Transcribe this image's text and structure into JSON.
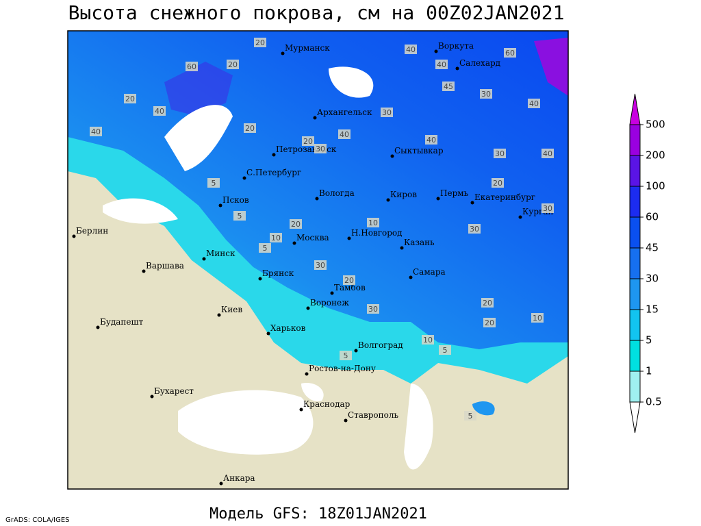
{
  "title": "Высота снежного покрова, см на 00Z02JAN2021",
  "footer": "Модель GFS: 18Z01JAN2021",
  "credit": "GrADS: COLA/IGES",
  "cities": [
    "Мурманск",
    "Воркута",
    "Салехард",
    "Архангельск",
    "Сыктывкар",
    "Петрозаводск",
    "С.Петербург",
    "Вологда",
    "Киров",
    "Пермь",
    "Екатеринбург",
    "Курган",
    "Псков",
    "Берлин",
    "Н.Новгород",
    "Казань",
    "Москва",
    "Минск",
    "Варшава",
    "Брянск",
    "Тамбов",
    "Самара",
    "Киев",
    "Воронеж",
    "Будапешт",
    "Харьков",
    "Волгоград",
    "Ростов-на-Дону",
    "Бухарест",
    "Краснодар",
    "Ставрополь",
    "Анкара"
  ],
  "contour_labels": [
    20,
    40,
    60,
    20,
    20,
    40,
    40,
    20,
    30,
    60,
    40,
    45,
    30,
    40,
    30,
    40,
    30,
    20,
    40,
    20,
    30,
    5,
    5,
    20,
    10,
    5,
    10,
    20,
    30,
    30,
    20,
    10,
    10,
    5,
    5,
    20,
    30,
    40,
    5
  ],
  "legend": {
    "levels": [
      0.5,
      1,
      5,
      15,
      30,
      45,
      60,
      100,
      200,
      500
    ],
    "colors": [
      "#ffffff",
      "#9ff0f0",
      "#00e0e0",
      "#12c4f0",
      "#1e96f0",
      "#1670f0",
      "#0a50f0",
      "#1c2cf0",
      "#5a14e6",
      "#9a00e0",
      "#c800e0"
    ]
  }
}
